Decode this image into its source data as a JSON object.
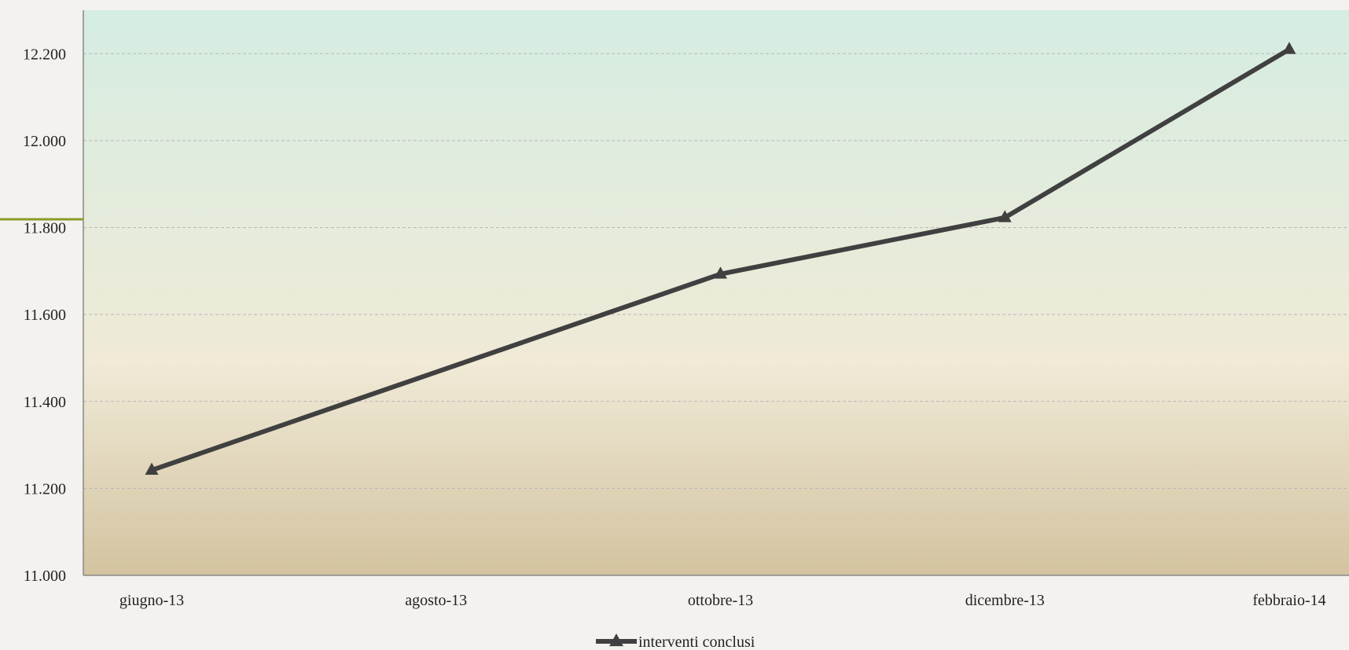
{
  "chart_data": {
    "type": "line",
    "title": "",
    "xlabel": "",
    "ylabel": "",
    "categories": [
      "giugno-13",
      "agosto-13",
      "ottobre-13",
      "dicembre-13",
      "febbraio-14"
    ],
    "x": [
      "giugno-13",
      "ottobre-13",
      "dicembre-13",
      "febbraio-14"
    ],
    "series": [
      {
        "name": "interventi conclusi",
        "points": [
          {
            "x": "giugno-13",
            "y": 11242
          },
          {
            "x": "ottobre-13",
            "y": 11693
          },
          {
            "x": "dicembre-13",
            "y": 11823
          },
          {
            "x": "febbraio-14",
            "y": 12210
          }
        ],
        "color": "#404040",
        "marker": "triangle"
      }
    ],
    "ylim": [
      11000,
      12300
    ],
    "yticks": [
      11000,
      11200,
      11400,
      11600,
      11800,
      12000,
      12200
    ],
    "ytick_labels": [
      "11.000",
      "11.200",
      "11.400",
      "11.600",
      "11.800",
      "12.000",
      "12.200"
    ],
    "grid": "horizontal dashed",
    "legend": "bottom-center",
    "background_gradient": [
      "#d5ede2",
      "#f0ead7",
      "#d3c3a0"
    ]
  }
}
